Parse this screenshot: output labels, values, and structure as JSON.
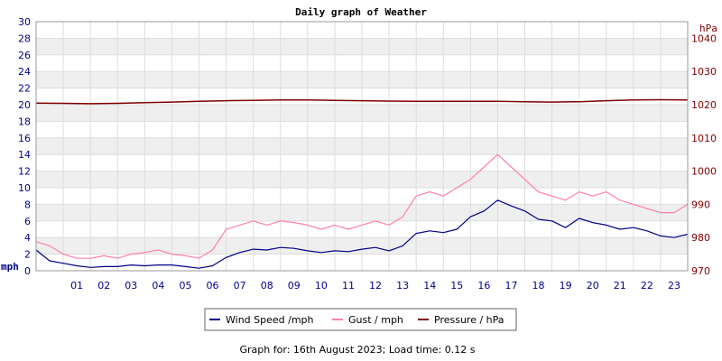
{
  "chart_data": {
    "type": "line",
    "title": "Daily graph of Weather",
    "left_axis": {
      "unit_label": "mph",
      "ylim": [
        0,
        30
      ],
      "ticks": [
        "0",
        "2",
        "4",
        "6",
        "8",
        "10",
        "12",
        "14",
        "16",
        "18",
        "20",
        "22",
        "24",
        "26",
        "28",
        "30"
      ],
      "color": "#00008b"
    },
    "right_axis": {
      "unit_label": "hPa",
      "ylim": [
        970,
        1045
      ],
      "ticks": [
        "970",
        "980",
        "990",
        "1000",
        "1010",
        "1020",
        "1030",
        "1040"
      ],
      "color": "#800000"
    },
    "x_axis": {
      "ticks": [
        "01",
        "02",
        "03",
        "04",
        "05",
        "06",
        "07",
        "08",
        "09",
        "10",
        "11",
        "12",
        "13",
        "14",
        "15",
        "16",
        "17",
        "18",
        "19",
        "20",
        "21",
        "22",
        "23"
      ],
      "xlim_hours": [
        0,
        24
      ]
    },
    "grid": true,
    "legend_position": "bottom",
    "series": [
      {
        "name": "Wind Speed /mph",
        "axis": "left",
        "color": "#00008b",
        "x_hours": [
          0,
          0.5,
          1,
          1.5,
          2,
          2.5,
          3,
          3.5,
          4,
          4.5,
          5,
          5.5,
          6,
          6.5,
          7,
          7.5,
          8,
          8.5,
          9,
          9.5,
          10,
          10.5,
          11,
          11.5,
          12,
          12.5,
          13,
          13.5,
          14,
          14.5,
          15,
          15.5,
          16,
          16.5,
          17,
          17.5,
          18,
          18.5,
          19,
          19.5,
          20,
          20.5,
          21,
          21.5,
          22,
          22.5,
          23,
          23.5,
          24
        ],
        "values": [
          2.5,
          1.2,
          0.9,
          0.6,
          0.4,
          0.5,
          0.5,
          0.7,
          0.6,
          0.7,
          0.7,
          0.5,
          0.3,
          0.6,
          1.6,
          2.2,
          2.6,
          2.5,
          2.8,
          2.7,
          2.4,
          2.2,
          2.4,
          2.3,
          2.6,
          2.8,
          2.4,
          3.0,
          4.5,
          4.8,
          4.6,
          5.0,
          6.5,
          7.2,
          8.5,
          7.8,
          7.2,
          6.2,
          6.0,
          5.2,
          6.3,
          5.8,
          5.5,
          5.0,
          5.2,
          4.8,
          4.2,
          4.0,
          4.4
        ]
      },
      {
        "name": "Gust / mph",
        "axis": "left",
        "color": "#ff80a8",
        "x_hours": [
          0,
          0.5,
          1,
          1.5,
          2,
          2.5,
          3,
          3.5,
          4,
          4.5,
          5,
          5.5,
          6,
          6.5,
          7,
          7.5,
          8,
          8.5,
          9,
          9.5,
          10,
          10.5,
          11,
          11.5,
          12,
          12.5,
          13,
          13.5,
          14,
          14.5,
          15,
          15.5,
          16,
          16.5,
          17,
          17.5,
          18,
          18.5,
          19,
          19.5,
          20,
          20.5,
          21,
          21.5,
          22,
          22.5,
          23,
          23.5,
          24
        ],
        "values": [
          3.5,
          3.0,
          2.0,
          1.5,
          1.5,
          1.8,
          1.5,
          2.0,
          2.2,
          2.5,
          2.0,
          1.8,
          1.5,
          2.5,
          5.0,
          5.5,
          6.0,
          5.5,
          6.0,
          5.8,
          5.5,
          5.0,
          5.5,
          5.0,
          5.5,
          6.0,
          5.5,
          6.5,
          9.0,
          9.5,
          9.0,
          10.0,
          11.0,
          12.5,
          14.0,
          12.5,
          11.0,
          9.5,
          9.0,
          8.5,
          9.5,
          9.0,
          9.5,
          8.5,
          8.0,
          7.5,
          7.0,
          7.0,
          8.0
        ]
      },
      {
        "name": "Pressure / hPa",
        "axis": "right",
        "color": "#800000",
        "x_hours": [
          0,
          1,
          2,
          3,
          4,
          5,
          6,
          7,
          8,
          9,
          10,
          11,
          12,
          13,
          14,
          15,
          16,
          17,
          18,
          19,
          20,
          21,
          22,
          23,
          24
        ],
        "values": [
          1020.5,
          1020.4,
          1020.3,
          1020.4,
          1020.6,
          1020.8,
          1021.0,
          1021.2,
          1021.3,
          1021.4,
          1021.4,
          1021.3,
          1021.2,
          1021.1,
          1021.0,
          1021.0,
          1021.0,
          1021.0,
          1020.9,
          1020.8,
          1020.9,
          1021.2,
          1021.4,
          1021.5,
          1021.4
        ]
      }
    ]
  },
  "legend": [
    {
      "label": "Wind Speed /mph",
      "color": "#00008b"
    },
    {
      "label": "Gust / mph",
      "color": "#ff80a8"
    },
    {
      "label": "Pressure / hPa",
      "color": "#800000"
    }
  ],
  "footer": {
    "text": "Graph for: 16th August 2023; Load time: 0.12 s"
  }
}
